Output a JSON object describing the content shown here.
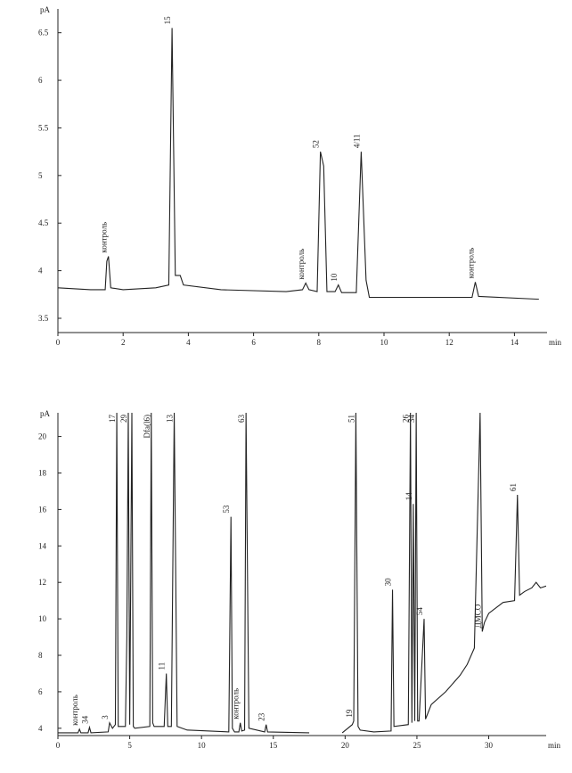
{
  "chart_data": [
    {
      "type": "line",
      "y_label": "pA",
      "x_label": "min",
      "color": "#222222",
      "xlim": [
        0,
        15
      ],
      "ylim": [
        3.35,
        6.75
      ],
      "xticks": [
        0,
        2,
        4,
        6,
        8,
        10,
        12,
        14
      ],
      "yticks": [
        3.5,
        4,
        4.5,
        5,
        5.5,
        6,
        6.5
      ],
      "x": [
        0,
        1.0,
        1.45,
        1.5,
        1.55,
        1.62,
        2.0,
        3.0,
        3.4,
        3.5,
        3.6,
        3.75,
        3.85,
        5,
        7.0,
        7.5,
        7.6,
        7.7,
        7.95,
        8.05,
        8.15,
        8.25,
        8.5,
        8.6,
        8.7,
        9.15,
        9.3,
        9.45,
        9.55,
        11,
        12.7,
        12.8,
        12.9,
        14.75
      ],
      "values": [
        3.82,
        3.8,
        3.8,
        4.1,
        4.15,
        3.82,
        3.8,
        3.82,
        3.85,
        6.55,
        3.95,
        3.95,
        3.85,
        3.8,
        3.78,
        3.8,
        3.87,
        3.8,
        3.78,
        5.25,
        5.1,
        3.78,
        3.78,
        3.85,
        3.77,
        3.77,
        5.25,
        3.9,
        3.72,
        3.72,
        3.72,
        3.88,
        3.73,
        3.7
      ],
      "annotations": [
        {
          "text": "контроль",
          "x": 1.55
        },
        {
          "text": "15",
          "x": 3.5
        },
        {
          "text": "контроль",
          "x": 7.6
        },
        {
          "text": "52",
          "x": 8.05
        },
        {
          "text": "10",
          "x": 8.6
        },
        {
          "text": "4/11",
          "x": 9.3
        },
        {
          "text": "контроль",
          "x": 12.8
        }
      ]
    },
    {
      "type": "line",
      "y_label": "pA",
      "x_label": "min",
      "color": "#222222",
      "xlim": [
        0,
        34
      ],
      "ylim": [
        3.6,
        21.3
      ],
      "xticks": [
        0,
        5,
        10,
        15,
        20,
        25,
        30
      ],
      "yticks": [
        4,
        6,
        8,
        10,
        12,
        14,
        16,
        18,
        20
      ],
      "x": [
        0,
        1.4,
        1.5,
        1.6,
        2.1,
        2.2,
        2.3,
        3.5,
        3.6,
        3.8,
        4.0,
        4.1,
        4.2,
        4.7,
        4.8,
        4.9,
        5.0,
        5.15,
        5.25,
        5.35,
        6.4,
        6.5,
        6.6,
        6.7,
        7.4,
        7.55,
        7.65,
        7.9,
        8.1,
        8.3,
        9,
        11.9,
        12.05,
        12.15,
        12.3,
        12.6,
        12.7,
        12.8,
        13.0,
        13.1,
        13.3,
        14.4,
        14.5,
        14.6,
        17.5,
        18.5,
        19.8,
        20.5,
        20.6,
        20.75,
        20.9,
        21.05,
        22,
        23.2,
        23.3,
        23.4,
        24.4,
        24.55,
        24.65,
        24.75,
        24.85,
        24.95,
        25.05,
        25.15,
        25.5,
        25.6,
        25.7,
        26,
        27,
        28,
        28.5,
        29,
        29.4,
        29.55,
        29.7,
        30,
        31,
        31.8,
        32,
        32.15,
        32.5,
        33,
        33.3,
        33.6,
        34
      ],
      "values": [
        3.75,
        3.75,
        3.95,
        3.75,
        3.75,
        4.05,
        3.75,
        3.8,
        4.3,
        4.0,
        4.2,
        21.3,
        4.1,
        4.1,
        9,
        21.3,
        4.2,
        21.3,
        4.1,
        4.0,
        4.1,
        21.3,
        4.3,
        4.1,
        4.1,
        7.0,
        4.1,
        4.1,
        21.3,
        4.1,
        3.9,
        3.8,
        15.6,
        4.0,
        3.8,
        3.8,
        4.3,
        3.85,
        3.9,
        21.3,
        4.0,
        3.8,
        4.2,
        3.8,
        3.75,
        null,
        3.75,
        4.2,
        4.4,
        21.3,
        4.1,
        3.9,
        3.8,
        3.85,
        11.6,
        4.1,
        4.2,
        21.3,
        4.3,
        16.3,
        4.4,
        21.3,
        4.4,
        4.4,
        10.0,
        4.5,
        4.7,
        5.3,
        6.0,
        6.9,
        7.5,
        8.4,
        21.3,
        9.3,
        9.8,
        10.3,
        10.9,
        11.0,
        16.8,
        11.3,
        11.5,
        11.7,
        12.0,
        11.7,
        11.8
      ],
      "annotations": [
        {
          "text": "контроль",
          "x": 1.5
        },
        {
          "text": "34",
          "x": 2.2
        },
        {
          "text": "3",
          "x": 3.6
        },
        {
          "text": "17",
          "x": 4.1
        },
        {
          "text": "29",
          "x": 4.9
        },
        {
          "text": "Dfa(l6)",
          "x": 6.5
        },
        {
          "text": "11",
          "x": 7.55
        },
        {
          "text": "13",
          "x": 8.1
        },
        {
          "text": "53",
          "x": 12.05
        },
        {
          "text": "контроль",
          "x": 12.7
        },
        {
          "text": "63",
          "x": 13.1
        },
        {
          "text": "23",
          "x": 14.5
        },
        {
          "text": "19",
          "x": 20.6
        },
        {
          "text": "51",
          "x": 20.75
        },
        {
          "text": "30",
          "x": 23.3
        },
        {
          "text": "26",
          "x": 24.55
        },
        {
          "text": "14",
          "x": 24.75
        },
        {
          "text": "34",
          "x": 24.95
        },
        {
          "text": "54",
          "x": 25.5
        },
        {
          "text": "ДМСО",
          "x": 29.55
        },
        {
          "text": "61",
          "x": 32
        }
      ]
    }
  ]
}
